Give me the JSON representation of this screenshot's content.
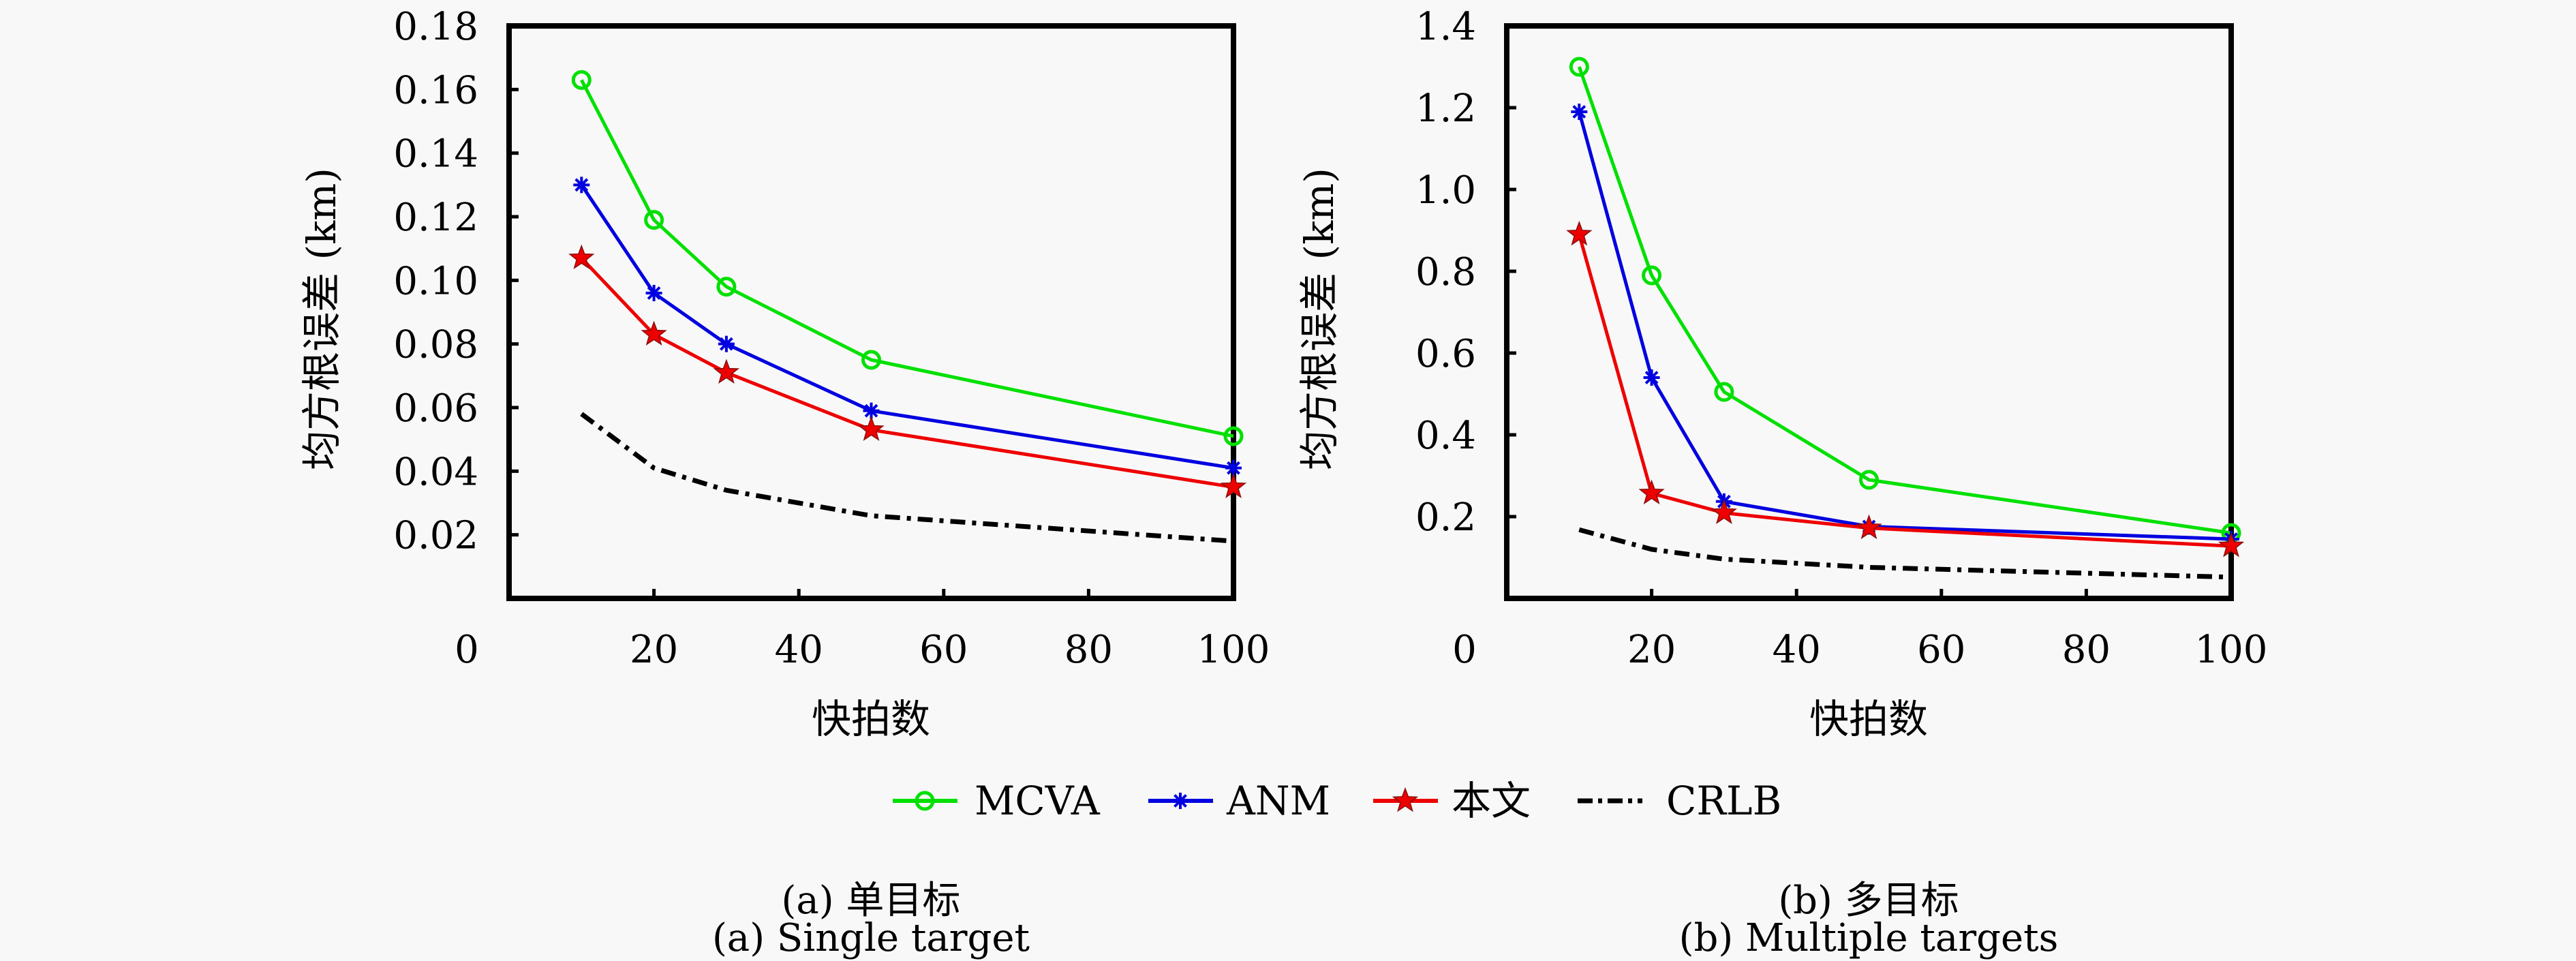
{
  "legend": {
    "entries": [
      {
        "name": "MCVA",
        "color": "#00e000",
        "marker": "circle",
        "dash": "solid"
      },
      {
        "name": "ANM",
        "color": "#0000e0",
        "marker": "asterisk",
        "dash": "solid"
      },
      {
        "name": "本文",
        "color": "#ee0000",
        "marker": "star",
        "dash": "solid"
      },
      {
        "name": "CRLB",
        "color": "#000000",
        "marker": "none",
        "dash": "dashdot"
      }
    ]
  },
  "chart_data": [
    {
      "type": "line",
      "title": "",
      "caption_cn": "(a) 单目标",
      "caption_en": "(a) Single target",
      "xlabel": "快拍数",
      "ylabel": "均方根误差 (km)",
      "xlim": [
        0,
        100
      ],
      "ylim": [
        0,
        0.18
      ],
      "xticks": [
        0,
        20,
        40,
        60,
        80,
        100
      ],
      "xtick_labels": [
        "0",
        "20",
        "40",
        "60",
        "80",
        "100"
      ],
      "yticks": [
        0.02,
        0.04,
        0.06,
        0.08,
        0.1,
        0.12,
        0.14,
        0.16,
        0.18
      ],
      "ytick_labels": [
        "0.02",
        "0.04",
        "0.06",
        "0.08",
        "0.10",
        "0.12",
        "0.14",
        "0.16",
        "0.18"
      ],
      "grid": false,
      "x": [
        10,
        20,
        30,
        50,
        100
      ],
      "series": [
        {
          "name": "MCVA",
          "values": [
            0.163,
            0.119,
            0.098,
            0.075,
            0.051
          ]
        },
        {
          "name": "ANM",
          "values": [
            0.13,
            0.096,
            0.08,
            0.059,
            0.041
          ]
        },
        {
          "name": "本文",
          "values": [
            0.107,
            0.083,
            0.071,
            0.053,
            0.035
          ]
        },
        {
          "name": "CRLB",
          "values": [
            0.058,
            0.041,
            0.034,
            0.026,
            0.018
          ]
        }
      ]
    },
    {
      "type": "line",
      "title": "",
      "caption_cn": "(b) 多目标",
      "caption_en": "(b) Multiple targets",
      "xlabel": "快拍数",
      "ylabel": "均方根误差 (km)",
      "xlim": [
        0,
        100
      ],
      "ylim": [
        0,
        1.4
      ],
      "xticks": [
        0,
        20,
        40,
        60,
        80,
        100
      ],
      "xtick_labels": [
        "0",
        "20",
        "40",
        "60",
        "80",
        "100"
      ],
      "yticks": [
        0.2,
        0.4,
        0.6,
        0.8,
        1.0,
        1.2,
        1.4
      ],
      "ytick_labels": [
        "0.2",
        "0.4",
        "0.6",
        "0.8",
        "1.0",
        "1.2",
        "1.4"
      ],
      "grid": false,
      "x": [
        10,
        20,
        30,
        50,
        100
      ],
      "series": [
        {
          "name": "MCVA",
          "values": [
            1.3,
            0.79,
            0.505,
            0.29,
            0.16
          ]
        },
        {
          "name": "ANM",
          "values": [
            1.19,
            0.54,
            0.237,
            0.176,
            0.145
          ]
        },
        {
          "name": "本文",
          "values": [
            0.89,
            0.257,
            0.209,
            0.172,
            0.128
          ]
        },
        {
          "name": "CRLB",
          "values": [
            0.168,
            0.12,
            0.096,
            0.076,
            0.052
          ]
        }
      ]
    }
  ]
}
